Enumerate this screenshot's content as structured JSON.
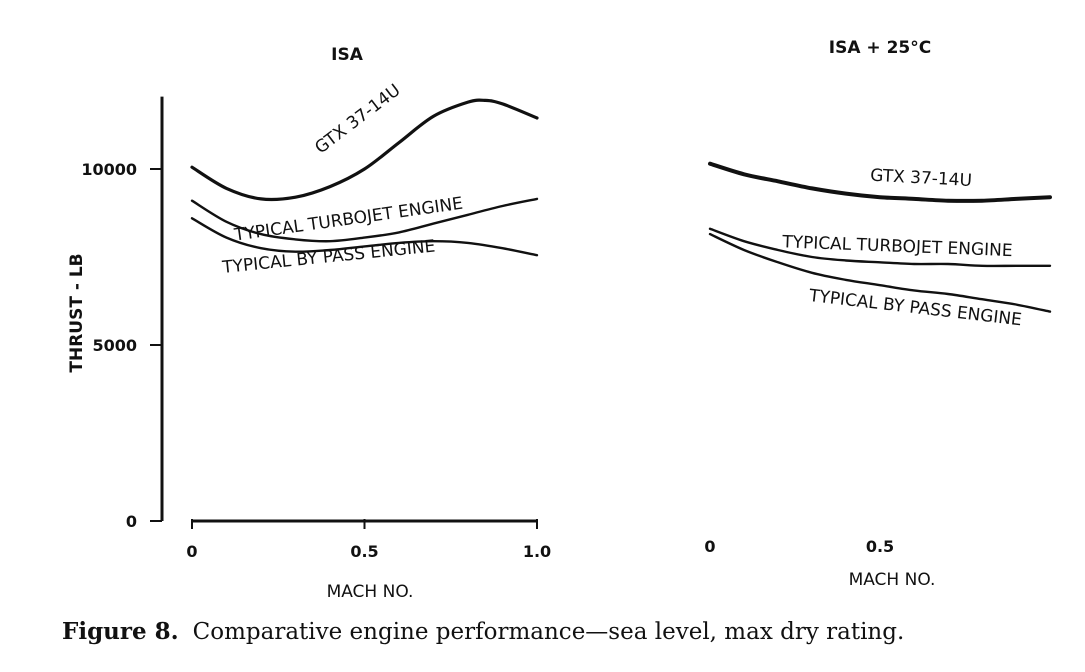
{
  "caption": {
    "number": "Figure 8.",
    "text": "Comparative engine performance—sea level, max dry rating."
  },
  "chart_data": [
    {
      "type": "line",
      "title": "ISA",
      "xlabel": "MACH NO.",
      "ylabel": "THRUST - LB",
      "xlim": [
        0,
        1.0
      ],
      "ylim": [
        0,
        12000
      ],
      "x_ticks": [
        0,
        0.5,
        1.0
      ],
      "x_tick_labels": [
        "0",
        "0.5",
        "1.0"
      ],
      "y_ticks": [
        0,
        5000,
        10000
      ],
      "y_tick_labels": [
        "0",
        "5000",
        "10000"
      ],
      "grid": false,
      "series": [
        {
          "name": "GTX 37-14U",
          "x": [
            0,
            0.1,
            0.2,
            0.3,
            0.4,
            0.5,
            0.6,
            0.7,
            0.8,
            0.85,
            0.9,
            1.0
          ],
          "y": [
            10050,
            9450,
            9150,
            9200,
            9500,
            10000,
            10750,
            11500,
            11900,
            11950,
            11850,
            11450
          ]
        },
        {
          "name": "TYPICAL TURBOJET ENGINE",
          "x": [
            0,
            0.1,
            0.2,
            0.3,
            0.4,
            0.5,
            0.6,
            0.7,
            0.8,
            0.9,
            1.0
          ],
          "y": [
            9100,
            8500,
            8150,
            8000,
            7950,
            8050,
            8200,
            8450,
            8700,
            8950,
            9150
          ]
        },
        {
          "name": "TYPICAL BY PASS ENGINE",
          "x": [
            0,
            0.1,
            0.2,
            0.3,
            0.4,
            0.5,
            0.6,
            0.7,
            0.8,
            0.9,
            1.0
          ],
          "y": [
            8600,
            8050,
            7750,
            7650,
            7700,
            7800,
            7900,
            7950,
            7900,
            7750,
            7550
          ]
        }
      ]
    },
    {
      "type": "line",
      "title": "ISA + 25°C",
      "xlabel": "MACH NO.",
      "ylabel": "",
      "xlim": [
        0,
        1.0
      ],
      "ylim": [
        0,
        12000
      ],
      "x_ticks": [
        0,
        0.5
      ],
      "x_tick_labels": [
        "0",
        "0.5"
      ],
      "grid": false,
      "series": [
        {
          "name": "GTX 37-14U",
          "x": [
            0,
            0.1,
            0.2,
            0.3,
            0.4,
            0.5,
            0.6,
            0.7,
            0.8,
            0.9,
            1.0
          ],
          "y": [
            10150,
            9850,
            9650,
            9450,
            9300,
            9200,
            9150,
            9100,
            9100,
            9150,
            9200
          ]
        },
        {
          "name": "TYPICAL TURBOJET ENGINE",
          "x": [
            0,
            0.1,
            0.2,
            0.3,
            0.4,
            0.5,
            0.6,
            0.7,
            0.8,
            0.9,
            1.0
          ],
          "y": [
            8300,
            7950,
            7700,
            7500,
            7400,
            7350,
            7300,
            7300,
            7250,
            7250,
            7250
          ]
        },
        {
          "name": "TYPICAL BY PASS ENGINE",
          "x": [
            0,
            0.1,
            0.2,
            0.3,
            0.4,
            0.5,
            0.6,
            0.7,
            0.8,
            0.9,
            1.0
          ],
          "y": [
            8150,
            7700,
            7350,
            7050,
            6850,
            6700,
            6550,
            6450,
            6300,
            6150,
            5950
          ]
        }
      ]
    }
  ]
}
